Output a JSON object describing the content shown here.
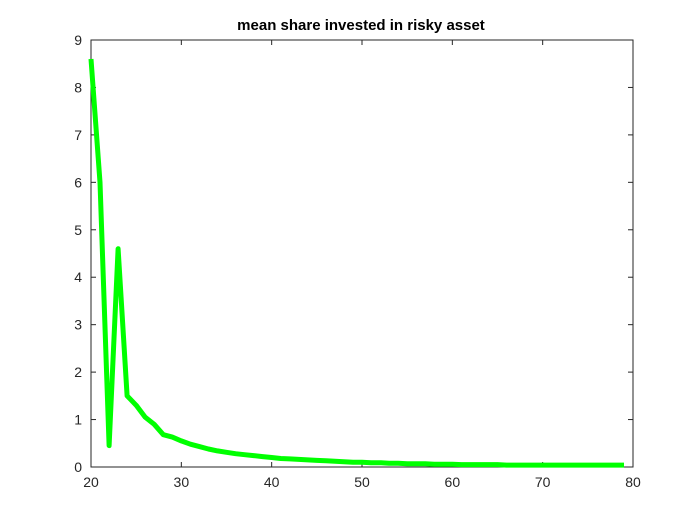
{
  "chart_data": {
    "type": "line",
    "title": "mean share invested in risky asset",
    "xlabel": "",
    "ylabel": "",
    "xlim": [
      20,
      80
    ],
    "ylim": [
      0,
      9
    ],
    "xticks": [
      20,
      30,
      40,
      50,
      60,
      70,
      80
    ],
    "yticks": [
      0,
      1,
      2,
      3,
      4,
      5,
      6,
      7,
      8,
      9
    ],
    "grid": false,
    "legend": "none",
    "series": [
      {
        "color": "#00ff00",
        "x": [
          20,
          21,
          22,
          23,
          24,
          25,
          26,
          27,
          28,
          29,
          30,
          31,
          32,
          33,
          34,
          35,
          36,
          37,
          38,
          39,
          40,
          41,
          42,
          43,
          44,
          45,
          46,
          47,
          48,
          49,
          50,
          51,
          52,
          53,
          54,
          55,
          56,
          57,
          58,
          59,
          60,
          61,
          62,
          63,
          64,
          65,
          66,
          67,
          68,
          69,
          70,
          71,
          72,
          73,
          74,
          75,
          76,
          77,
          78,
          79
        ],
        "values": [
          8.6,
          6.0,
          0.45,
          4.6,
          1.5,
          1.3,
          1.05,
          0.9,
          0.68,
          0.63,
          0.55,
          0.48,
          0.43,
          0.38,
          0.34,
          0.31,
          0.28,
          0.26,
          0.24,
          0.22,
          0.2,
          0.18,
          0.17,
          0.16,
          0.15,
          0.14,
          0.13,
          0.12,
          0.11,
          0.1,
          0.1,
          0.09,
          0.09,
          0.08,
          0.08,
          0.07,
          0.07,
          0.07,
          0.06,
          0.06,
          0.06,
          0.05,
          0.05,
          0.05,
          0.05,
          0.05,
          0.04,
          0.04,
          0.04,
          0.04,
          0.04,
          0.04,
          0.04,
          0.04,
          0.04,
          0.04,
          0.04,
          0.04,
          0.04,
          0.04
        ]
      }
    ]
  }
}
